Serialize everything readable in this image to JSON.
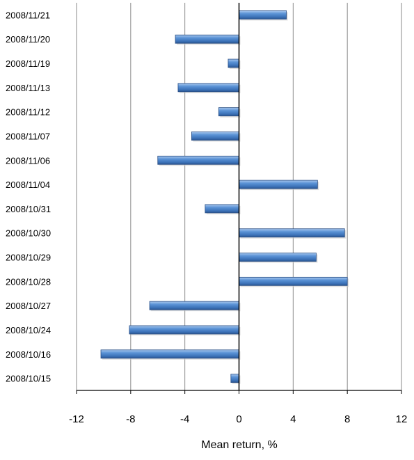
{
  "chart_data": {
    "type": "bar",
    "orientation": "horizontal",
    "categories": [
      "2008/11/21",
      "2008/11/20",
      "2008/11/19",
      "2008/11/13",
      "2008/11/12",
      "2008/11/07",
      "2008/11/06",
      "2008/11/04",
      "2008/10/31",
      "2008/10/30",
      "2008/10/29",
      "2008/10/28",
      "2008/10/27",
      "2008/10/24",
      "2008/10/16",
      "2008/10/15"
    ],
    "values": [
      3.5,
      -4.7,
      -0.8,
      -4.5,
      -1.5,
      -3.5,
      -6.0,
      5.8,
      -2.5,
      7.8,
      5.7,
      8.0,
      -6.6,
      -8.1,
      -10.2,
      -0.6
    ],
    "title": "",
    "xlabel": "Mean return, %",
    "ylabel": "",
    "xlim": [
      -12,
      12
    ],
    "xticks": [
      "-12",
      "-8",
      "-4",
      "0",
      "4",
      "8",
      "12"
    ],
    "grid": "vertical",
    "legend": "none",
    "bar_color": "#4a7fc0"
  }
}
